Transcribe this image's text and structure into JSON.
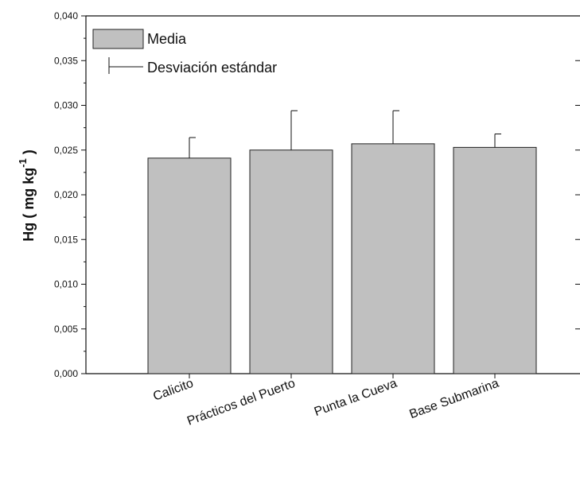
{
  "chart_data": {
    "type": "bar",
    "categories": [
      "Calicito",
      "Prácticos del Puerto",
      "Punta la Cueva",
      "Base Submarina"
    ],
    "series": [
      {
        "name": "Media",
        "values": [
          0.0241,
          0.025,
          0.0257,
          0.0253
        ],
        "error_upper": [
          0.0023,
          0.0044,
          0.0037,
          0.0015
        ]
      }
    ],
    "ylabel_prefix": "Hg (  mg kg",
    "ylabel_sup": "-1",
    "ylabel_suffix": "  )",
    "ylim": [
      0,
      0.04
    ],
    "yticks": [
      "0,000",
      "0,005",
      "0,010",
      "0,015",
      "0,020",
      "0,025",
      "0,030",
      "0,035",
      "0,040"
    ],
    "legend": {
      "bar_label": "Media",
      "error_label": "Desviación estándar",
      "position": "top-left"
    },
    "colors": {
      "bar_fill": "#c0c0c0",
      "bar_stroke": "#222222",
      "axis": "#111111"
    },
    "grid": false
  }
}
